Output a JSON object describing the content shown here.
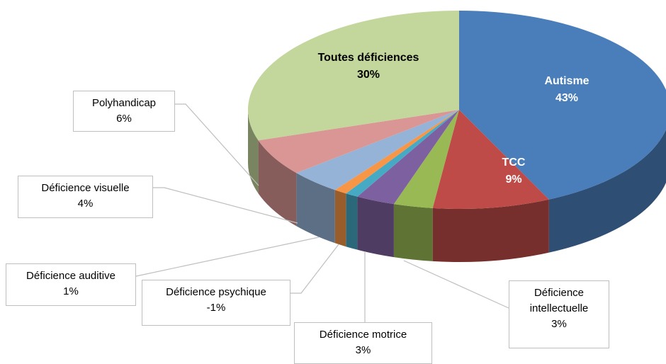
{
  "chart_data": {
    "type": "pie3d",
    "categories": [
      "Autisme",
      "TCC",
      "Déficience intellectuelle",
      "Déficience motrice",
      "Déficience psychique",
      "Déficience auditive",
      "Déficience visuelle",
      "Polyhandicap",
      "Toutes déficiences"
    ],
    "values": [
      43,
      9,
      3,
      3,
      -1,
      1,
      4,
      6,
      30
    ],
    "value_labels": [
      "43%",
      "9%",
      "3%",
      "3%",
      "-1%",
      "1%",
      "4%",
      "6%",
      "30%"
    ],
    "colors": [
      "#4a7ebb",
      "#be4b48",
      "#98b954",
      "#7d60a0",
      "#46aac5",
      "#f79646",
      "#95b3d7",
      "#d99694",
      "#c3d69b"
    ]
  }
}
